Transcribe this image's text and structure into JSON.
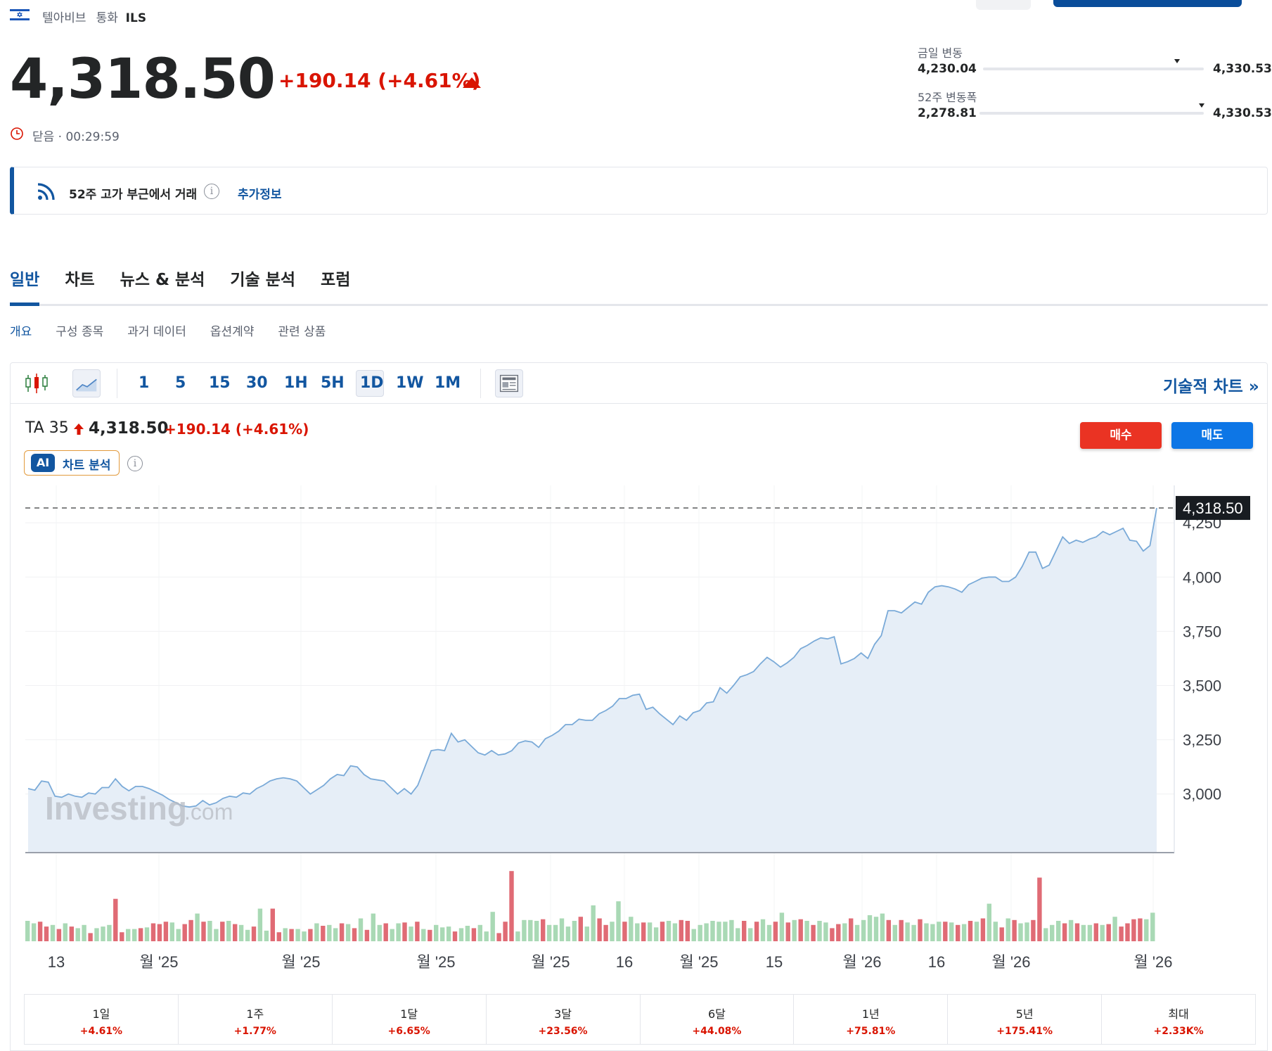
{
  "header": {
    "exchange": "텔아비브",
    "currency_label": "통화",
    "currency": "ILS",
    "flag_icon": "israel-flag-icon"
  },
  "quote": {
    "price": "4,318.50",
    "change": "+190.14",
    "change_pct": "(+4.61%)",
    "status": "닫음 · 00:29:59"
  },
  "ranges": {
    "day": {
      "label": "금일 변동",
      "low": "4,230.04",
      "high": "4,330.53",
      "position": 0.88
    },
    "week52": {
      "label": "52주 변동폭",
      "low": "2,278.81",
      "high": "4,330.53",
      "position": 0.99
    }
  },
  "alert": {
    "text": "52주 고가 부근에서 거래",
    "info": "i",
    "link": "추가정보"
  },
  "tabs": [
    {
      "label": "일반",
      "active": true
    },
    {
      "label": "차트",
      "active": false
    },
    {
      "label": "뉴스 & 분석",
      "active": false
    },
    {
      "label": "기술 분석",
      "active": false
    },
    {
      "label": "포럼",
      "active": false
    }
  ],
  "subtabs": [
    {
      "label": "개요",
      "active": true
    },
    {
      "label": "구성 종목",
      "active": false
    },
    {
      "label": "과거 데이터",
      "active": false
    },
    {
      "label": "옵션계약",
      "active": false
    },
    {
      "label": "관련 상품",
      "active": false
    }
  ],
  "toolbar": {
    "timeframes": [
      "1",
      "5",
      "15",
      "30",
      "1H",
      "5H",
      "1D",
      "1W",
      "1M"
    ],
    "selected_timeframe": "1D",
    "tech_chart_label": "기술적 차트 »"
  },
  "legend": {
    "name": "TA 35",
    "price": "4,318.50",
    "change": "+190.14",
    "change_pct": "(+4.61%)"
  },
  "ai": {
    "badge": "AI",
    "label": "차트 분석",
    "info": "i"
  },
  "trade": {
    "buy": "매수",
    "sell": "매도"
  },
  "watermark": {
    "brand": "Investing",
    "suffix": ".com"
  },
  "colors": {
    "accent": "#1256a0",
    "negative": "#d91400",
    "line": "#7aaad8",
    "area": "#e6eef7",
    "vol_up": "#a9d9b5",
    "vol_down": "#e06b75"
  },
  "chart_data": {
    "type": "area",
    "series_name": "TA 35",
    "x_tick_labels": [
      "13",
      "월 '25",
      "월 '25",
      "월 '25",
      "월 '25",
      "16",
      "월 '25",
      "15",
      "월 '26",
      "16",
      "월 '26",
      "월 '26"
    ],
    "y_ticks": [
      3000,
      3250,
      3500,
      3750,
      4000,
      4250
    ],
    "y_tick_labels": [
      "3,000",
      "3,250",
      "3,500",
      "3,750",
      "4,000",
      "4,250"
    ],
    "ylim": [
      2730,
      4390
    ],
    "last_value_label": "4,318.50",
    "last_value": 4318.5,
    "values": [
      3025,
      3018,
      3060,
      3055,
      2990,
      2985,
      3000,
      2990,
      2985,
      3005,
      3000,
      3030,
      3030,
      3070,
      3035,
      3015,
      3035,
      3035,
      3025,
      3010,
      2995,
      2975,
      2960,
      2945,
      2940,
      2945,
      2970,
      2950,
      2960,
      2980,
      2990,
      2985,
      3005,
      3000,
      3025,
      3040,
      3060,
      3070,
      3075,
      3070,
      3060,
      3030,
      3000,
      3020,
      3040,
      3070,
      3090,
      3085,
      3130,
      3125,
      3090,
      3070,
      3065,
      3060,
      3030,
      3000,
      3025,
      3000,
      3040,
      3120,
      3200,
      3205,
      3200,
      3280,
      3240,
      3250,
      3220,
      3190,
      3180,
      3200,
      3180,
      3185,
      3200,
      3235,
      3245,
      3240,
      3215,
      3255,
      3270,
      3290,
      3320,
      3320,
      3345,
      3340,
      3340,
      3370,
      3385,
      3405,
      3440,
      3440,
      3455,
      3460,
      3390,
      3400,
      3370,
      3345,
      3320,
      3360,
      3340,
      3375,
      3385,
      3420,
      3425,
      3490,
      3465,
      3500,
      3540,
      3550,
      3565,
      3600,
      3630,
      3610,
      3585,
      3605,
      3630,
      3670,
      3685,
      3705,
      3720,
      3715,
      3725,
      3600,
      3610,
      3625,
      3650,
      3625,
      3690,
      3730,
      3845,
      3845,
      3835,
      3860,
      3885,
      3875,
      3930,
      3955,
      3960,
      3955,
      3945,
      3930,
      3965,
      3980,
      3995,
      4000,
      4000,
      3980,
      3980,
      4000,
      4050,
      4115,
      4115,
      4040,
      4055,
      4120,
      4185,
      4155,
      4170,
      4160,
      4175,
      4185,
      4210,
      4195,
      4210,
      4225,
      4170,
      4165,
      4120,
      4145,
      4318.5
    ],
    "volume": [
      {
        "v": 0.25,
        "up": true
      },
      {
        "v": 0.22,
        "up": true
      },
      {
        "v": 0.24,
        "up": false
      },
      {
        "v": 0.18,
        "up": false
      },
      {
        "v": 0.2,
        "up": true
      },
      {
        "v": 0.15,
        "up": false
      },
      {
        "v": 0.22,
        "up": true
      },
      {
        "v": 0.18,
        "up": false
      },
      {
        "v": 0.16,
        "up": true
      },
      {
        "v": 0.2,
        "up": true
      },
      {
        "v": 0.1,
        "up": false
      },
      {
        "v": 0.16,
        "up": true
      },
      {
        "v": 0.18,
        "up": true
      },
      {
        "v": 0.2,
        "up": true
      },
      {
        "v": 0.52,
        "up": false
      },
      {
        "v": 0.11,
        "up": false
      },
      {
        "v": 0.15,
        "up": true
      },
      {
        "v": 0.15,
        "up": true
      },
      {
        "v": 0.16,
        "up": false
      },
      {
        "v": 0.17,
        "up": true
      },
      {
        "v": 0.22,
        "up": false
      },
      {
        "v": 0.21,
        "up": false
      },
      {
        "v": 0.24,
        "up": false
      },
      {
        "v": 0.23,
        "up": true
      },
      {
        "v": 0.15,
        "up": true
      },
      {
        "v": 0.21,
        "up": false
      },
      {
        "v": 0.26,
        "up": false
      },
      {
        "v": 0.34,
        "up": true
      },
      {
        "v": 0.24,
        "up": false
      },
      {
        "v": 0.25,
        "up": true
      },
      {
        "v": 0.15,
        "up": true
      },
      {
        "v": 0.24,
        "up": false
      },
      {
        "v": 0.25,
        "up": true
      },
      {
        "v": 0.21,
        "up": false
      },
      {
        "v": 0.2,
        "up": true
      },
      {
        "v": 0.14,
        "up": true
      },
      {
        "v": 0.18,
        "up": false
      },
      {
        "v": 0.4,
        "up": true
      },
      {
        "v": 0.13,
        "up": true
      },
      {
        "v": 0.4,
        "up": false
      },
      {
        "v": 0.11,
        "up": false
      },
      {
        "v": 0.16,
        "up": true
      },
      {
        "v": 0.15,
        "up": false
      },
      {
        "v": 0.15,
        "up": true
      },
      {
        "v": 0.12,
        "up": true
      },
      {
        "v": 0.15,
        "up": false
      },
      {
        "v": 0.22,
        "up": true
      },
      {
        "v": 0.19,
        "up": false
      },
      {
        "v": 0.2,
        "up": true
      },
      {
        "v": 0.16,
        "up": true
      },
      {
        "v": 0.22,
        "up": false
      },
      {
        "v": 0.21,
        "up": true
      },
      {
        "v": 0.16,
        "up": false
      },
      {
        "v": 0.28,
        "up": true
      },
      {
        "v": 0.14,
        "up": false
      },
      {
        "v": 0.34,
        "up": true
      },
      {
        "v": 0.2,
        "up": true
      },
      {
        "v": 0.22,
        "up": false
      },
      {
        "v": 0.15,
        "up": true
      },
      {
        "v": 0.22,
        "up": true
      },
      {
        "v": 0.23,
        "up": false
      },
      {
        "v": 0.18,
        "up": true
      },
      {
        "v": 0.24,
        "up": false
      },
      {
        "v": 0.15,
        "up": true
      },
      {
        "v": 0.14,
        "up": false
      },
      {
        "v": 0.2,
        "up": true
      },
      {
        "v": 0.17,
        "up": true
      },
      {
        "v": 0.18,
        "up": true
      },
      {
        "v": 0.12,
        "up": false
      },
      {
        "v": 0.16,
        "up": true
      },
      {
        "v": 0.19,
        "up": true
      },
      {
        "v": 0.16,
        "up": false
      },
      {
        "v": 0.2,
        "up": true
      },
      {
        "v": 0.12,
        "up": true
      },
      {
        "v": 0.36,
        "up": true
      },
      {
        "v": 0.1,
        "up": false
      },
      {
        "v": 0.24,
        "up": false
      },
      {
        "v": 0.86,
        "up": false
      },
      {
        "v": 0.12,
        "up": true
      },
      {
        "v": 0.26,
        "up": true
      },
      {
        "v": 0.26,
        "up": true
      },
      {
        "v": 0.25,
        "up": true
      },
      {
        "v": 0.27,
        "up": false
      },
      {
        "v": 0.2,
        "up": true
      },
      {
        "v": 0.2,
        "up": true
      },
      {
        "v": 0.28,
        "up": true
      },
      {
        "v": 0.18,
        "up": true
      },
      {
        "v": 0.25,
        "up": true
      },
      {
        "v": 0.3,
        "up": false
      },
      {
        "v": 0.18,
        "up": true
      },
      {
        "v": 0.44,
        "up": true
      },
      {
        "v": 0.28,
        "up": false
      },
      {
        "v": 0.2,
        "up": false
      },
      {
        "v": 0.24,
        "up": true
      },
      {
        "v": 0.49,
        "up": true
      },
      {
        "v": 0.24,
        "up": false
      },
      {
        "v": 0.3,
        "up": true
      },
      {
        "v": 0.22,
        "up": true
      },
      {
        "v": 0.23,
        "up": false
      },
      {
        "v": 0.23,
        "up": true
      },
      {
        "v": 0.17,
        "up": true
      },
      {
        "v": 0.24,
        "up": false
      },
      {
        "v": 0.25,
        "up": true
      },
      {
        "v": 0.22,
        "up": true
      },
      {
        "v": 0.26,
        "up": false
      },
      {
        "v": 0.25,
        "up": false
      },
      {
        "v": 0.15,
        "up": true
      },
      {
        "v": 0.2,
        "up": true
      },
      {
        "v": 0.22,
        "up": true
      },
      {
        "v": 0.25,
        "up": true
      },
      {
        "v": 0.24,
        "up": true
      },
      {
        "v": 0.24,
        "up": true
      },
      {
        "v": 0.26,
        "up": true
      },
      {
        "v": 0.16,
        "up": true
      },
      {
        "v": 0.25,
        "up": false
      },
      {
        "v": 0.16,
        "up": true
      },
      {
        "v": 0.24,
        "up": false
      },
      {
        "v": 0.27,
        "up": true
      },
      {
        "v": 0.2,
        "up": true
      },
      {
        "v": 0.24,
        "up": false
      },
      {
        "v": 0.35,
        "up": true
      },
      {
        "v": 0.23,
        "up": false
      },
      {
        "v": 0.26,
        "up": true
      },
      {
        "v": 0.27,
        "up": false
      },
      {
        "v": 0.25,
        "up": true
      },
      {
        "v": 0.2,
        "up": false
      },
      {
        "v": 0.25,
        "up": true
      },
      {
        "v": 0.23,
        "up": true
      },
      {
        "v": 0.16,
        "up": false
      },
      {
        "v": 0.21,
        "up": false
      },
      {
        "v": 0.22,
        "up": true
      },
      {
        "v": 0.28,
        "up": false
      },
      {
        "v": 0.2,
        "up": true
      },
      {
        "v": 0.26,
        "up": true
      },
      {
        "v": 0.32,
        "up": true
      },
      {
        "v": 0.3,
        "up": true
      },
      {
        "v": 0.34,
        "up": true
      },
      {
        "v": 0.26,
        "up": false
      },
      {
        "v": 0.2,
        "up": true
      },
      {
        "v": 0.26,
        "up": false
      },
      {
        "v": 0.23,
        "up": true
      },
      {
        "v": 0.2,
        "up": true
      },
      {
        "v": 0.27,
        "up": false
      },
      {
        "v": 0.22,
        "up": true
      },
      {
        "v": 0.21,
        "up": true
      },
      {
        "v": 0.24,
        "up": true
      },
      {
        "v": 0.24,
        "up": false
      },
      {
        "v": 0.23,
        "up": true
      },
      {
        "v": 0.2,
        "up": false
      },
      {
        "v": 0.21,
        "up": true
      },
      {
        "v": 0.25,
        "up": false
      },
      {
        "v": 0.24,
        "up": true
      },
      {
        "v": 0.28,
        "up": false
      },
      {
        "v": 0.46,
        "up": true
      },
      {
        "v": 0.24,
        "up": true
      },
      {
        "v": 0.17,
        "up": false
      },
      {
        "v": 0.28,
        "up": true
      },
      {
        "v": 0.26,
        "up": false
      },
      {
        "v": 0.22,
        "up": true
      },
      {
        "v": 0.23,
        "up": true
      },
      {
        "v": 0.26,
        "up": false
      },
      {
        "v": 0.78,
        "up": false
      },
      {
        "v": 0.16,
        "up": true
      },
      {
        "v": 0.2,
        "up": true
      },
      {
        "v": 0.25,
        "up": true
      },
      {
        "v": 0.22,
        "up": false
      },
      {
        "v": 0.26,
        "up": true
      },
      {
        "v": 0.22,
        "up": false
      },
      {
        "v": 0.2,
        "up": true
      },
      {
        "v": 0.2,
        "up": true
      },
      {
        "v": 0.22,
        "up": false
      },
      {
        "v": 0.2,
        "up": true
      },
      {
        "v": 0.21,
        "up": false
      },
      {
        "v": 0.3,
        "up": true
      },
      {
        "v": 0.18,
        "up": false
      },
      {
        "v": 0.22,
        "up": false
      },
      {
        "v": 0.27,
        "up": false
      },
      {
        "v": 0.28,
        "up": false
      },
      {
        "v": 0.27,
        "up": true
      },
      {
        "v": 0.35,
        "up": true
      }
    ]
  },
  "performance": [
    {
      "label": "1일",
      "value": "+4.61%"
    },
    {
      "label": "1주",
      "value": "+1.77%"
    },
    {
      "label": "1달",
      "value": "+6.65%"
    },
    {
      "label": "3달",
      "value": "+23.56%"
    },
    {
      "label": "6달",
      "value": "+44.08%"
    },
    {
      "label": "1년",
      "value": "+75.81%"
    },
    {
      "label": "5년",
      "value": "+175.41%"
    },
    {
      "label": "최대",
      "value": "+2.33K%"
    }
  ]
}
